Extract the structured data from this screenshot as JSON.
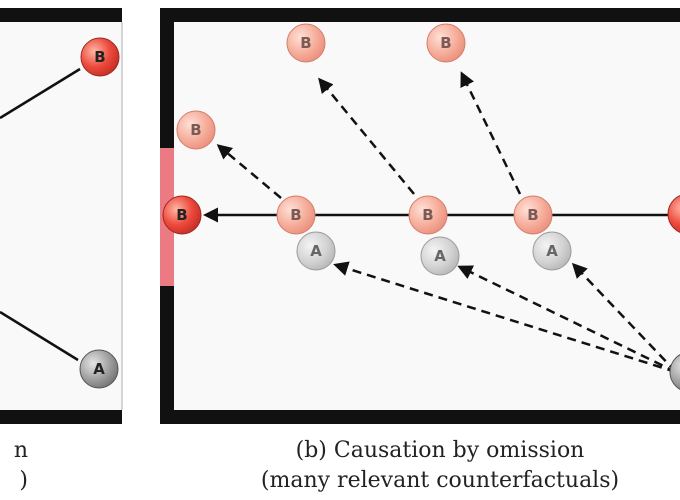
{
  "left_panel": {
    "caption_line1": "n",
    "caption_line2": ")",
    "balls": {
      "top_label": "B",
      "bottom_label": "A"
    }
  },
  "right_panel": {
    "caption_line1": "(b) Causation by omission",
    "caption_line2": "(many relevant counterfactuals)",
    "balls": {
      "counterfactual_top_1": "B",
      "counterfactual_top_2": "B",
      "counterfactual_upper_left": "B",
      "goal_ball": "B",
      "mid_b_1": "B",
      "mid_b_2": "B",
      "mid_b_3": "B",
      "mid_a_1": "A",
      "mid_a_2": "A",
      "mid_a_3": "A"
    }
  },
  "colors": {
    "wall": "#111111",
    "goal": "#ec7a82",
    "ball_red": "#e8463a",
    "ball_red_faded": "#f3a792",
    "ball_gray": "#9a9a9a",
    "ball_gray_faded": "#cfcfcf",
    "arrow": "#111111"
  }
}
